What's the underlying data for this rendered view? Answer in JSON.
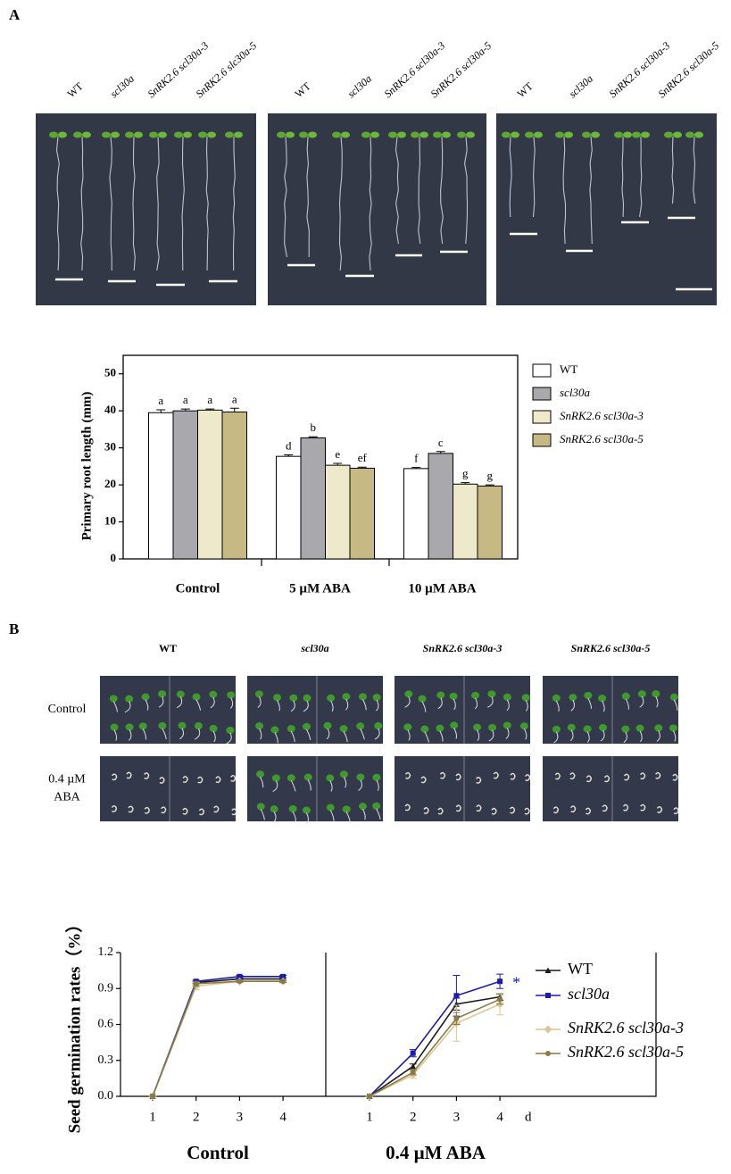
{
  "panel_a": {
    "label": "A",
    "photo_labels": [
      [
        "WT",
        "scl30a",
        "SnRK2.6 scl30a-3",
        "SnRK2.6 slc30a-5"
      ],
      [
        "WT",
        "scl30a",
        "SnRK2.6 scl30a-3",
        "SnRK2.6 scl30a-5"
      ],
      [
        "WT",
        "scl30a",
        "SnRK2.6 scl30a-3",
        "SnRK2.6 scl30a-5"
      ]
    ]
  },
  "panel_b": {
    "label": "B",
    "column_labels": [
      "WT",
      "scl30a",
      "SnRK2.6 scl30a-3",
      "SnRK2.6 scl30a-5"
    ],
    "row_labels": [
      {
        "lines": [
          "Control"
        ]
      },
      {
        "lines": [
          "0.4 µM",
          "ABA"
        ]
      }
    ]
  },
  "chart_data": [
    {
      "type": "bar",
      "ylabel": "Primary root length (mm)",
      "categories": [
        "Control",
        "5 µM ABA",
        "10 µM ABA"
      ],
      "ylim": [
        0,
        55
      ],
      "yticks": [
        0,
        10,
        20,
        30,
        40,
        50
      ],
      "series": [
        {
          "name": "WT",
          "color": "#ffffff",
          "values": [
            39.5,
            27.7,
            24.4
          ],
          "errors": [
            0.8,
            0.4,
            0.3
          ],
          "letters": [
            "a",
            "d",
            "f"
          ]
        },
        {
          "name": "scl30a",
          "color": "#a9a8ad",
          "values": [
            40.0,
            32.7,
            28.5
          ],
          "errors": [
            0.5,
            0.3,
            0.5
          ],
          "letters": [
            "a",
            "b",
            "c"
          ]
        },
        {
          "name": "SnRK2.6 scl30a-3",
          "color": "#efe9cc",
          "values": [
            40.2,
            25.3,
            20.2
          ],
          "errors": [
            0.3,
            0.5,
            0.4
          ],
          "letters": [
            "a",
            "e",
            "g"
          ]
        },
        {
          "name": "SnRK2.6 scl30a-5",
          "color": "#c7b984",
          "values": [
            39.7,
            24.5,
            19.7
          ],
          "errors": [
            1.0,
            0.3,
            0.3
          ],
          "letters": [
            "a",
            "ef",
            "g"
          ]
        }
      ]
    },
    {
      "type": "line",
      "ylabel": "Seed germination rates（%）",
      "x_unit": "d",
      "x": [
        1,
        2,
        3,
        4
      ],
      "ylim": [
        0,
        1.2
      ],
      "yticks": [
        {
          "value": 0,
          "label": "0.0"
        },
        0.3,
        0.6,
        0.9,
        1.2
      ],
      "series": [
        {
          "name": "WT",
          "color": "#1a1a1a",
          "marker": "triangle"
        },
        {
          "name": "scl30a",
          "color": "#1c1caa",
          "marker": "square"
        },
        {
          "name": "SnRK2.6 scl30a-3",
          "color": "#d9c794",
          "marker": "diamond"
        },
        {
          "name": "SnRK2.6 scl30a-5",
          "color": "#8c7a45",
          "marker": "circle"
        }
      ],
      "panels": [
        {
          "label": "Control",
          "series": [
            {
              "values": [
                0,
                0.95,
                0.98,
                0.98
              ],
              "errors": [
                0,
                0.01,
                0.01,
                0.01
              ]
            },
            {
              "values": [
                0,
                0.96,
                1.0,
                1.0
              ],
              "errors": [
                0,
                0.01,
                0.01,
                0.01
              ]
            },
            {
              "values": [
                0,
                0.92,
                0.96,
                0.96
              ],
              "errors": [
                0,
                0.03,
                0.01,
                0.01
              ]
            },
            {
              "values": [
                0,
                0.94,
                0.96,
                0.96
              ],
              "errors": [
                0,
                0.02,
                0.01,
                0.01
              ]
            }
          ]
        },
        {
          "label": "0.4 µM ABA",
          "annotation": "*",
          "series": [
            {
              "values": [
                0,
                0.25,
                0.77,
                0.83
              ],
              "errors": [
                0,
                0.02,
                0.05,
                0.03
              ]
            },
            {
              "values": [
                0,
                0.36,
                0.84,
                0.96
              ],
              "errors": [
                0,
                0.03,
                0.17,
                0.06
              ]
            },
            {
              "values": [
                0,
                0.18,
                0.61,
                0.77
              ],
              "errors": [
                0,
                0.03,
                0.15,
                0.09
              ]
            },
            {
              "values": [
                0,
                0.2,
                0.65,
                0.81
              ],
              "errors": [
                0,
                0.02,
                0.05,
                0.04
              ]
            }
          ]
        }
      ]
    }
  ]
}
